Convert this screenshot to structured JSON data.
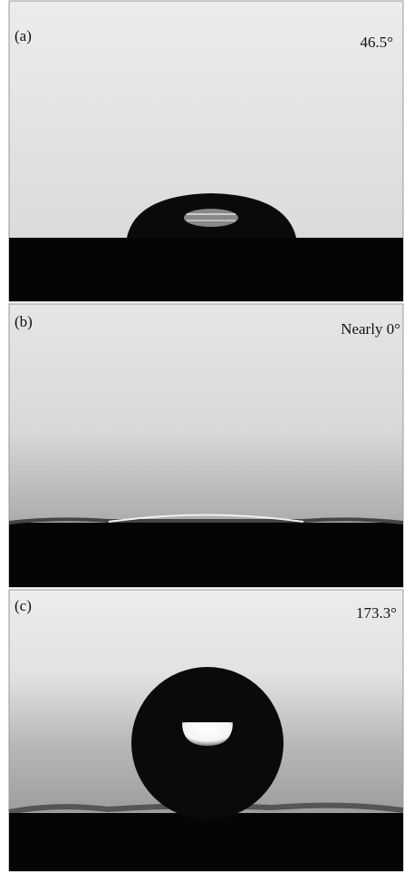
{
  "panels": [
    {
      "label": "(a)",
      "angle": "46.5°"
    },
    {
      "label": "(b)",
      "angle": "Nearly 0°"
    },
    {
      "label": "(c)",
      "angle": "173.3°"
    }
  ]
}
